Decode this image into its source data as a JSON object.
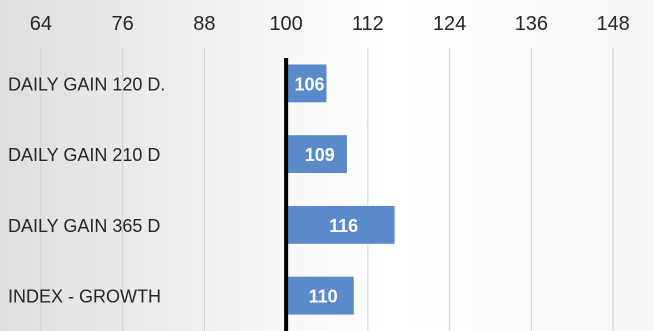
{
  "chart_data": {
    "type": "bar",
    "orientation": "horizontal",
    "categories": [
      "DAILY GAIN 120 D.",
      "DAILY GAIN 210 D",
      "DAILY GAIN 365 D",
      "INDEX - GROWTH"
    ],
    "values": [
      106,
      109,
      116,
      110
    ],
    "base_value": 100,
    "x_ticks": [
      64,
      76,
      88,
      100,
      112,
      124,
      136,
      148
    ],
    "xlim": [
      58,
      154
    ],
    "x_axis_position": "top",
    "grid": true,
    "legend": "none",
    "data_labels": true,
    "title": "",
    "xlabel": "",
    "ylabel": "",
    "colors": {
      "bar": "#5b8acb",
      "bar_border": "#ffffff",
      "label": "#ffffff",
      "baseline": "#000000",
      "grid": "#d2d2d2",
      "text": "#262626"
    }
  }
}
